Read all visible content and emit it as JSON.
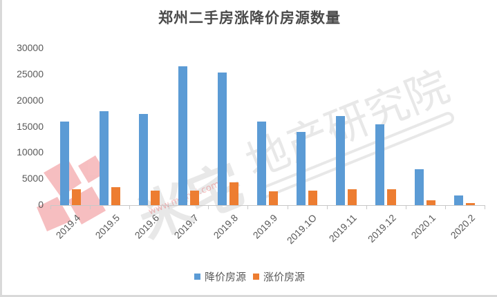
{
  "chart_data": {
    "type": "bar",
    "title": "郑州二手房涨降价房源数量",
    "xlabel": "",
    "ylabel": "",
    "ylim": [
      0,
      30000
    ],
    "yticks": [
      0,
      5000,
      10000,
      15000,
      20000,
      25000,
      30000
    ],
    "ytick_labels": [
      "0",
      "5000",
      "10000",
      "15000",
      "20000",
      "25000",
      "30000"
    ],
    "grid": false,
    "legend_position": "bottom",
    "categories": [
      "2019.4",
      "2019.5",
      "2019.6",
      "2019.7",
      "2019.8",
      "2019.9",
      "2019.1O",
      "2019.11",
      "2019.12",
      "2020.1",
      "2020.2"
    ],
    "series": [
      {
        "name": "降价房源",
        "color": "#5b9bd5",
        "values": [
          16000,
          18000,
          17500,
          26500,
          25400,
          16000,
          14000,
          17000,
          15500,
          6900,
          1900
        ]
      },
      {
        "name": "涨价房源",
        "color": "#ed7d31",
        "values": [
          3000,
          3500,
          2800,
          2800,
          4400,
          2700,
          2800,
          3000,
          3000,
          900,
          400
        ]
      }
    ]
  },
  "watermark": {
    "logo_text": "米宅",
    "org_text": "地产研究院",
    "url_text": "www.mizhai.com"
  }
}
